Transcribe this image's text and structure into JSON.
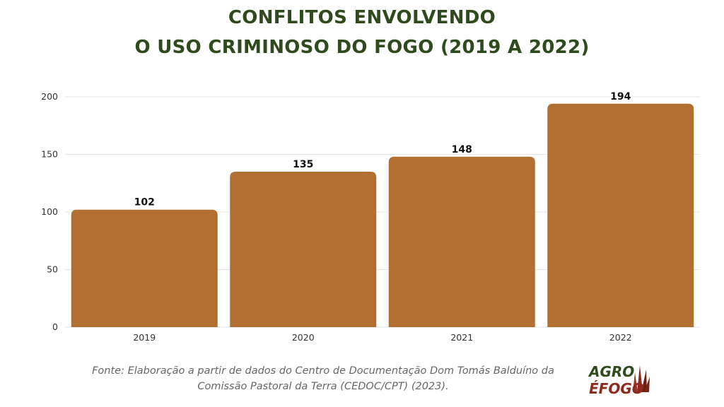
{
  "title_line1": "CONFLITOS ENVOLVENDO",
  "title_line2": "O USO CRIMINOSO DO FOGO (2019 A 2022)",
  "source_line1": "Fonte: Elaboração a partir de dados do Centro de Documentação Dom Tomás Balduíno da",
  "source_line2": "Comissão Pastoral da Terra (CEDOC/CPT) (2023).",
  "logo_text": "AGRO É FOGO",
  "colors": {
    "bar": "#b17032",
    "title": "#2f4a1c",
    "grid": "#e6e6e6",
    "axis_text": "#333333",
    "label_text": "#111111"
  },
  "chart_data": {
    "type": "bar",
    "categories": [
      "2019",
      "2020",
      "2021",
      "2022"
    ],
    "values": [
      102,
      135,
      148,
      194
    ],
    "ylim": [
      0,
      200
    ],
    "yticks": [
      0,
      50,
      100,
      150,
      200
    ],
    "grid": true,
    "data_labels": true
  }
}
